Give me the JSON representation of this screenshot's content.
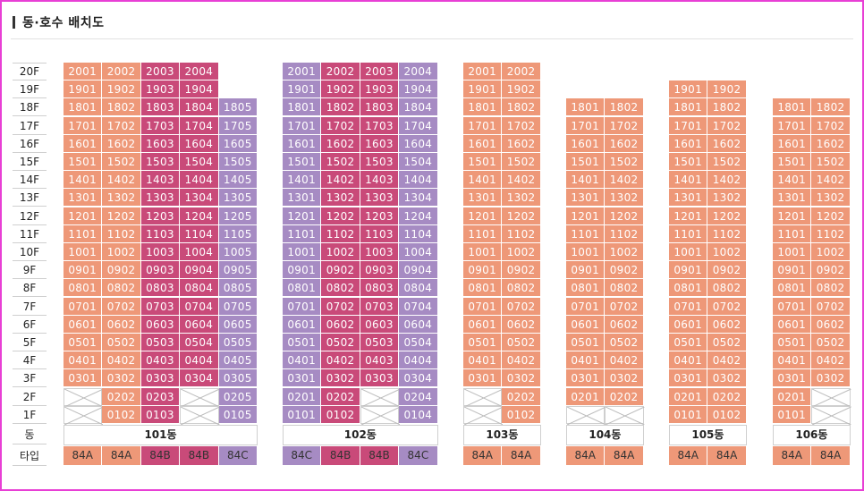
{
  "title": "동·호수 배치도",
  "floor_labels": [
    "20F",
    "19F",
    "18F",
    "17F",
    "16F",
    "15F",
    "14F",
    "13F",
    "12F",
    "11F",
    "10F",
    "9F",
    "8F",
    "7F",
    "6F",
    "5F",
    "4F",
    "3F",
    "2F",
    "1F"
  ],
  "row_labels": {
    "dong": "동",
    "type": "타입"
  },
  "colors": {
    "84A": "#ee9878",
    "84B": "#c94a79",
    "84C": "#a68bc3",
    "frame": "#e83fd5"
  },
  "buildings": [
    {
      "name": "101동",
      "columns": [
        {
          "line": "01",
          "type": "84A",
          "top_floor": 20,
          "missing_floors": [
            1,
            2
          ]
        },
        {
          "line": "02",
          "type": "84A",
          "top_floor": 20,
          "missing_floors": []
        },
        {
          "line": "03",
          "type": "84B",
          "top_floor": 20,
          "missing_floors": []
        },
        {
          "line": "04",
          "type": "84B",
          "top_floor": 20,
          "missing_floors": [
            1,
            2
          ]
        },
        {
          "line": "05",
          "type": "84C",
          "top_floor": 18,
          "missing_floors": []
        }
      ]
    },
    {
      "name": "102동",
      "columns": [
        {
          "line": "01",
          "type": "84C",
          "top_floor": 20,
          "missing_floors": []
        },
        {
          "line": "02",
          "type": "84B",
          "top_floor": 20,
          "missing_floors": []
        },
        {
          "line": "03",
          "type": "84B",
          "top_floor": 20,
          "missing_floors": [
            1,
            2
          ]
        },
        {
          "line": "04",
          "type": "84C",
          "top_floor": 20,
          "missing_floors": []
        }
      ]
    },
    {
      "name": "103동",
      "columns": [
        {
          "line": "01",
          "type": "84A",
          "top_floor": 20,
          "missing_floors": [
            1,
            2
          ]
        },
        {
          "line": "02",
          "type": "84A",
          "top_floor": 20,
          "missing_floors": []
        }
      ]
    },
    {
      "name": "104동",
      "columns": [
        {
          "line": "01",
          "type": "84A",
          "top_floor": 18,
          "missing_floors": [
            1
          ]
        },
        {
          "line": "02",
          "type": "84A",
          "top_floor": 18,
          "missing_floors": [
            1
          ]
        }
      ]
    },
    {
      "name": "105동",
      "columns": [
        {
          "line": "01",
          "type": "84A",
          "top_floor": 19,
          "missing_floors": []
        },
        {
          "line": "02",
          "type": "84A",
          "top_floor": 19,
          "missing_floors": []
        }
      ]
    },
    {
      "name": "106동",
      "columns": [
        {
          "line": "01",
          "type": "84A",
          "top_floor": 18,
          "missing_floors": []
        },
        {
          "line": "02",
          "type": "84A",
          "top_floor": 18,
          "missing_floors": [
            1,
            2
          ]
        }
      ]
    }
  ]
}
